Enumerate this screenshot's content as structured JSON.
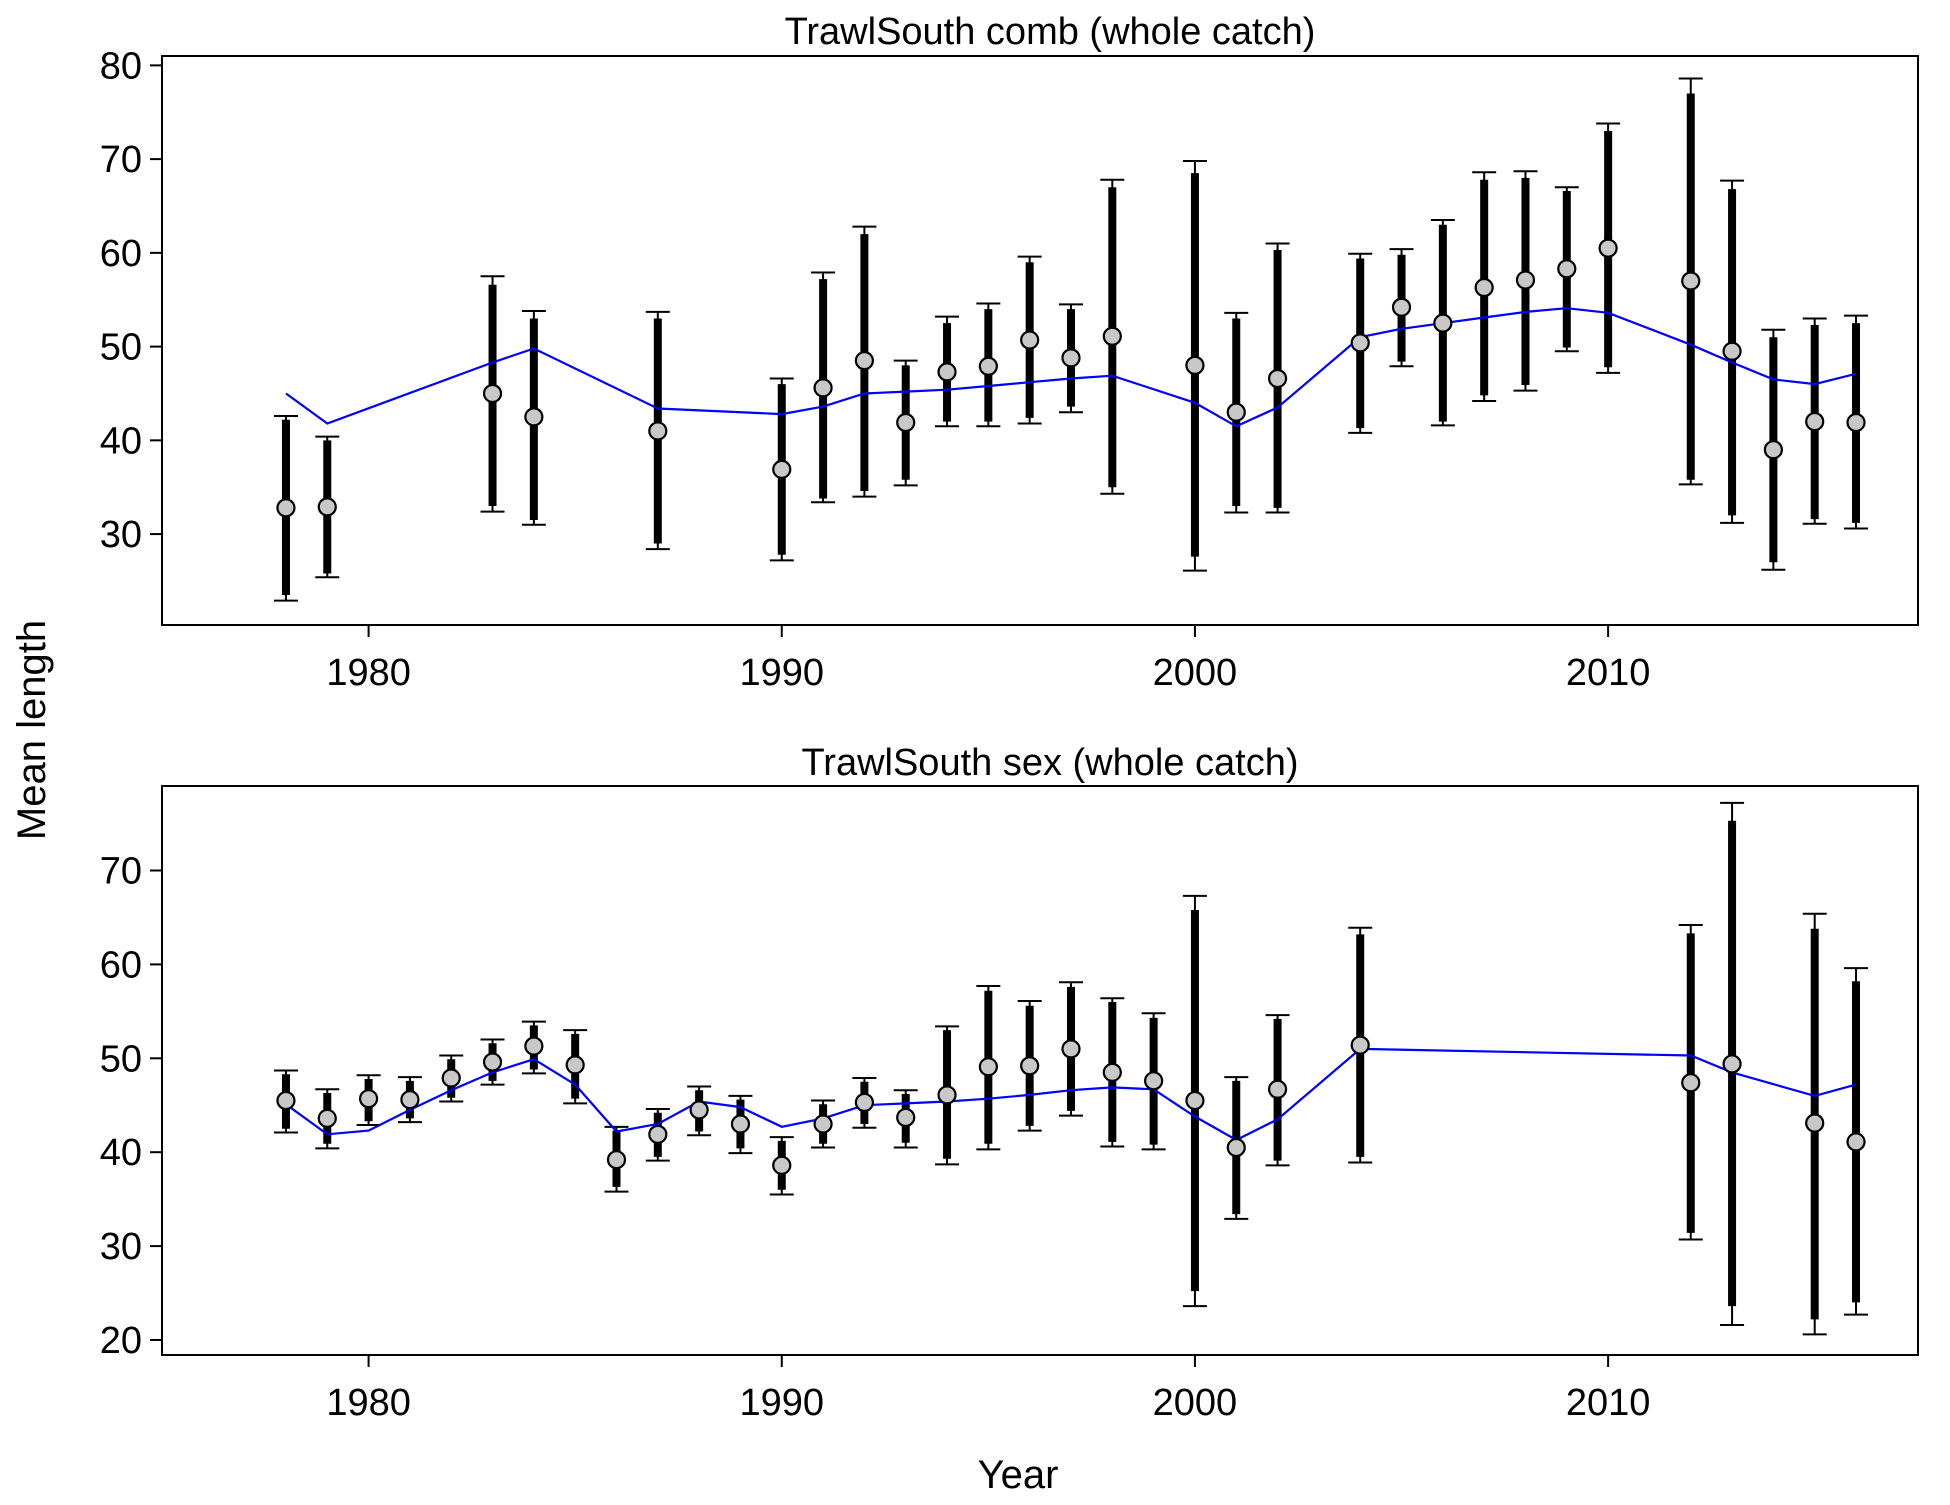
{
  "figure": {
    "ylabel": "Mean length",
    "xlabel": "Year",
    "colors": {
      "expected_line": "#0000FF",
      "point_fill": "#C8C8C8",
      "bars": "#000000"
    }
  },
  "chart_data": [
    {
      "type": "scatter",
      "title": "TrawlSouth comb (whole catch)",
      "xlabel": "",
      "ylabel": "",
      "xlim": [
        1975,
        2017.5
      ],
      "ylim": [
        20.3,
        81
      ],
      "xticks": [
        1980,
        1990,
        2000,
        2010
      ],
      "yticks": [
        30,
        40,
        50,
        60,
        70,
        80
      ],
      "grid": false,
      "series": [
        {
          "kind": "observed_with_intervals",
          "points": [
            {
              "x": 1978,
              "y": 32.8,
              "inner_lo": 23.5,
              "inner_hi": 42.2,
              "outer_lo": 22.9,
              "outer_hi": 42.6
            },
            {
              "x": 1979,
              "y": 32.9,
              "inner_lo": 25.8,
              "inner_hi": 40.0,
              "outer_lo": 25.4,
              "outer_hi": 40.4
            },
            {
              "x": 1983,
              "y": 45.0,
              "inner_lo": 33.0,
              "inner_hi": 56.6,
              "outer_lo": 32.4,
              "outer_hi": 57.5
            },
            {
              "x": 1984,
              "y": 42.5,
              "inner_lo": 31.5,
              "inner_hi": 53.0,
              "outer_lo": 31.0,
              "outer_hi": 53.8
            },
            {
              "x": 1987,
              "y": 41.0,
              "inner_lo": 29.0,
              "inner_hi": 53.0,
              "outer_lo": 28.4,
              "outer_hi": 53.7
            },
            {
              "x": 1990,
              "y": 36.9,
              "inner_lo": 27.8,
              "inner_hi": 46.0,
              "outer_lo": 27.2,
              "outer_hi": 46.6
            },
            {
              "x": 1991,
              "y": 45.6,
              "inner_lo": 33.8,
              "inner_hi": 57.2,
              "outer_lo": 33.4,
              "outer_hi": 57.9
            },
            {
              "x": 1992,
              "y": 48.5,
              "inner_lo": 34.6,
              "inner_hi": 62.0,
              "outer_lo": 34.0,
              "outer_hi": 62.8
            },
            {
              "x": 1993,
              "y": 41.9,
              "inner_lo": 35.8,
              "inner_hi": 48.0,
              "outer_lo": 35.2,
              "outer_hi": 48.5
            },
            {
              "x": 1994,
              "y": 47.3,
              "inner_lo": 42.0,
              "inner_hi": 52.5,
              "outer_lo": 41.5,
              "outer_hi": 53.2
            },
            {
              "x": 1995,
              "y": 47.9,
              "inner_lo": 42.0,
              "inner_hi": 54.0,
              "outer_lo": 41.5,
              "outer_hi": 54.6
            },
            {
              "x": 1996,
              "y": 50.7,
              "inner_lo": 42.4,
              "inner_hi": 59.0,
              "outer_lo": 41.8,
              "outer_hi": 59.6
            },
            {
              "x": 1997,
              "y": 48.8,
              "inner_lo": 43.6,
              "inner_hi": 54.0,
              "outer_lo": 43.0,
              "outer_hi": 54.5
            },
            {
              "x": 1998,
              "y": 51.1,
              "inner_lo": 35.0,
              "inner_hi": 67.0,
              "outer_lo": 34.3,
              "outer_hi": 67.8
            },
            {
              "x": 2000,
              "y": 48.0,
              "inner_lo": 27.6,
              "inner_hi": 68.5,
              "outer_lo": 26.1,
              "outer_hi": 69.8
            },
            {
              "x": 2001,
              "y": 43.0,
              "inner_lo": 33.0,
              "inner_hi": 53.0,
              "outer_lo": 32.3,
              "outer_hi": 53.6
            },
            {
              "x": 2002,
              "y": 46.6,
              "inner_lo": 32.8,
              "inner_hi": 60.3,
              "outer_lo": 32.3,
              "outer_hi": 61.0
            },
            {
              "x": 2004,
              "y": 50.4,
              "inner_lo": 41.3,
              "inner_hi": 59.4,
              "outer_lo": 40.8,
              "outer_hi": 59.9
            },
            {
              "x": 2005,
              "y": 54.2,
              "inner_lo": 48.4,
              "inner_hi": 59.8,
              "outer_lo": 47.9,
              "outer_hi": 60.4
            },
            {
              "x": 2006,
              "y": 52.5,
              "inner_lo": 42.0,
              "inner_hi": 63.0,
              "outer_lo": 41.6,
              "outer_hi": 63.5
            },
            {
              "x": 2007,
              "y": 56.3,
              "inner_lo": 44.8,
              "inner_hi": 67.8,
              "outer_lo": 44.2,
              "outer_hi": 68.6
            },
            {
              "x": 2008,
              "y": 57.1,
              "inner_lo": 45.9,
              "inner_hi": 68.0,
              "outer_lo": 45.3,
              "outer_hi": 68.7
            },
            {
              "x": 2009,
              "y": 58.3,
              "inner_lo": 49.9,
              "inner_hi": 66.6,
              "outer_lo": 49.5,
              "outer_hi": 67.0
            },
            {
              "x": 2010,
              "y": 60.5,
              "inner_lo": 47.8,
              "inner_hi": 73.0,
              "outer_lo": 47.2,
              "outer_hi": 73.8
            },
            {
              "x": 2012,
              "y": 57.0,
              "inner_lo": 35.8,
              "inner_hi": 77.0,
              "outer_lo": 35.3,
              "outer_hi": 78.6
            },
            {
              "x": 2013,
              "y": 49.5,
              "inner_lo": 32.0,
              "inner_hi": 66.8,
              "outer_lo": 31.2,
              "outer_hi": 67.7
            },
            {
              "x": 2014,
              "y": 39.0,
              "inner_lo": 27.0,
              "inner_hi": 51.0,
              "outer_lo": 26.2,
              "outer_hi": 51.8
            },
            {
              "x": 2015,
              "y": 42.0,
              "inner_lo": 31.6,
              "inner_hi": 52.3,
              "outer_lo": 31.1,
              "outer_hi": 53.0
            },
            {
              "x": 2016,
              "y": 41.9,
              "inner_lo": 31.2,
              "inner_hi": 52.5,
              "outer_lo": 30.6,
              "outer_hi": 53.3
            }
          ]
        },
        {
          "kind": "expected_line",
          "x": [
            1978,
            1979,
            1983,
            1984,
            1987,
            1990,
            1991,
            1992,
            1993,
            1994,
            1995,
            1996,
            1997,
            1998,
            2000,
            2001,
            2002,
            2004,
            2005,
            2006,
            2007,
            2008,
            2009,
            2010,
            2012,
            2013,
            2014,
            2015,
            2016
          ],
          "y": [
            45.0,
            41.8,
            48.3,
            49.8,
            43.4,
            42.8,
            43.6,
            45.0,
            45.2,
            45.4,
            45.8,
            46.2,
            46.6,
            46.9,
            44.0,
            41.5,
            43.5,
            51.0,
            51.9,
            52.5,
            53.1,
            53.7,
            54.1,
            53.6,
            50.2,
            48.3,
            46.5,
            46.0,
            47.1
          ]
        }
      ]
    },
    {
      "type": "scatter",
      "title": "TrawlSouth sex (whole catch)",
      "xlabel": "",
      "ylabel": "",
      "xlim": [
        1975,
        2017.5
      ],
      "ylim": [
        18.4,
        79
      ],
      "xticks": [
        1980,
        1990,
        2000,
        2010
      ],
      "yticks": [
        20,
        30,
        40,
        50,
        60,
        70
      ],
      "grid": false,
      "series": [
        {
          "kind": "observed_with_intervals",
          "points": [
            {
              "x": 1978,
              "y": 45.5,
              "inner_lo": 42.5,
              "inner_hi": 48.3,
              "outer_lo": 42.1,
              "outer_hi": 48.7
            },
            {
              "x": 1979,
              "y": 43.6,
              "inner_lo": 40.9,
              "inner_hi": 46.3,
              "outer_lo": 40.4,
              "outer_hi": 46.7
            },
            {
              "x": 1980,
              "y": 45.7,
              "inner_lo": 43.3,
              "inner_hi": 47.8,
              "outer_lo": 42.9,
              "outer_hi": 48.2
            },
            {
              "x": 1981,
              "y": 45.6,
              "inner_lo": 43.6,
              "inner_hi": 47.6,
              "outer_lo": 43.2,
              "outer_hi": 48.0
            },
            {
              "x": 1982,
              "y": 47.9,
              "inner_lo": 45.8,
              "inner_hi": 49.9,
              "outer_lo": 45.4,
              "outer_hi": 50.3
            },
            {
              "x": 1983,
              "y": 49.6,
              "inner_lo": 47.6,
              "inner_hi": 51.6,
              "outer_lo": 47.2,
              "outer_hi": 52.0
            },
            {
              "x": 1984,
              "y": 51.3,
              "inner_lo": 48.8,
              "inner_hi": 53.5,
              "outer_lo": 48.4,
              "outer_hi": 53.9
            },
            {
              "x": 1985,
              "y": 49.3,
              "inner_lo": 45.7,
              "inner_hi": 52.6,
              "outer_lo": 45.2,
              "outer_hi": 53.0
            },
            {
              "x": 1986,
              "y": 39.2,
              "inner_lo": 36.3,
              "inner_hi": 42.3,
              "outer_lo": 35.8,
              "outer_hi": 42.7
            },
            {
              "x": 1987,
              "y": 41.9,
              "inner_lo": 39.5,
              "inner_hi": 44.2,
              "outer_lo": 39.1,
              "outer_hi": 44.6
            },
            {
              "x": 1988,
              "y": 44.5,
              "inner_lo": 42.2,
              "inner_hi": 46.6,
              "outer_lo": 41.8,
              "outer_hi": 47.0
            },
            {
              "x": 1989,
              "y": 43.0,
              "inner_lo": 40.4,
              "inner_hi": 45.6,
              "outer_lo": 39.9,
              "outer_hi": 46.0
            },
            {
              "x": 1990,
              "y": 38.6,
              "inner_lo": 36.0,
              "inner_hi": 41.2,
              "outer_lo": 35.5,
              "outer_hi": 41.6
            },
            {
              "x": 1991,
              "y": 43.0,
              "inner_lo": 40.9,
              "inner_hi": 45.1,
              "outer_lo": 40.5,
              "outer_hi": 45.5
            },
            {
              "x": 1992,
              "y": 45.3,
              "inner_lo": 43.0,
              "inner_hi": 47.5,
              "outer_lo": 42.6,
              "outer_hi": 47.9
            },
            {
              "x": 1993,
              "y": 43.7,
              "inner_lo": 41.0,
              "inner_hi": 46.2,
              "outer_lo": 40.5,
              "outer_hi": 46.6
            },
            {
              "x": 1994,
              "y": 46.1,
              "inner_lo": 39.3,
              "inner_hi": 53.0,
              "outer_lo": 38.7,
              "outer_hi": 53.4
            },
            {
              "x": 1995,
              "y": 49.1,
              "inner_lo": 40.9,
              "inner_hi": 57.2,
              "outer_lo": 40.3,
              "outer_hi": 57.7
            },
            {
              "x": 1996,
              "y": 49.2,
              "inner_lo": 42.8,
              "inner_hi": 55.6,
              "outer_lo": 42.3,
              "outer_hi": 56.1
            },
            {
              "x": 1997,
              "y": 51.0,
              "inner_lo": 44.4,
              "inner_hi": 57.6,
              "outer_lo": 43.9,
              "outer_hi": 58.1
            },
            {
              "x": 1998,
              "y": 48.5,
              "inner_lo": 41.1,
              "inner_hi": 56.0,
              "outer_lo": 40.6,
              "outer_hi": 56.4
            },
            {
              "x": 1999,
              "y": 47.6,
              "inner_lo": 40.8,
              "inner_hi": 54.3,
              "outer_lo": 40.3,
              "outer_hi": 54.8
            },
            {
              "x": 2000,
              "y": 45.5,
              "inner_lo": 25.2,
              "inner_hi": 65.8,
              "outer_lo": 23.6,
              "outer_hi": 67.3
            },
            {
              "x": 2001,
              "y": 40.5,
              "inner_lo": 33.4,
              "inner_hi": 47.6,
              "outer_lo": 32.9,
              "outer_hi": 48.0
            },
            {
              "x": 2002,
              "y": 46.7,
              "inner_lo": 39.1,
              "inner_hi": 54.2,
              "outer_lo": 38.6,
              "outer_hi": 54.6
            },
            {
              "x": 2004,
              "y": 51.4,
              "inner_lo": 39.5,
              "inner_hi": 63.2,
              "outer_lo": 38.9,
              "outer_hi": 63.9
            },
            {
              "x": 2012,
              "y": 47.4,
              "inner_lo": 31.4,
              "inner_hi": 63.3,
              "outer_lo": 30.7,
              "outer_hi": 64.2
            },
            {
              "x": 2013,
              "y": 49.4,
              "inner_lo": 23.6,
              "inner_hi": 75.3,
              "outer_lo": 21.6,
              "outer_hi": 77.2
            },
            {
              "x": 2015,
              "y": 43.1,
              "inner_lo": 22.2,
              "inner_hi": 63.8,
              "outer_lo": 20.6,
              "outer_hi": 65.4
            },
            {
              "x": 2016,
              "y": 41.1,
              "inner_lo": 24.0,
              "inner_hi": 58.2,
              "outer_lo": 22.7,
              "outer_hi": 59.6
            }
          ]
        },
        {
          "kind": "expected_line",
          "x": [
            1978,
            1979,
            1980,
            1981,
            1982,
            1983,
            1984,
            1985,
            1986,
            1987,
            1988,
            1989,
            1990,
            1991,
            1992,
            1993,
            1994,
            1995,
            1996,
            1997,
            1998,
            1999,
            2000,
            2001,
            2002,
            2004,
            2012,
            2013,
            2015,
            2016
          ],
          "y": [
            45.1,
            41.9,
            42.3,
            44.5,
            46.6,
            48.5,
            49.9,
            47.2,
            42.2,
            43.0,
            45.4,
            44.8,
            42.7,
            43.6,
            45.0,
            45.2,
            45.4,
            45.7,
            46.1,
            46.6,
            46.9,
            46.7,
            43.8,
            41.3,
            43.5,
            51.0,
            50.3,
            48.5,
            46.0,
            47.2
          ]
        }
      ]
    }
  ]
}
